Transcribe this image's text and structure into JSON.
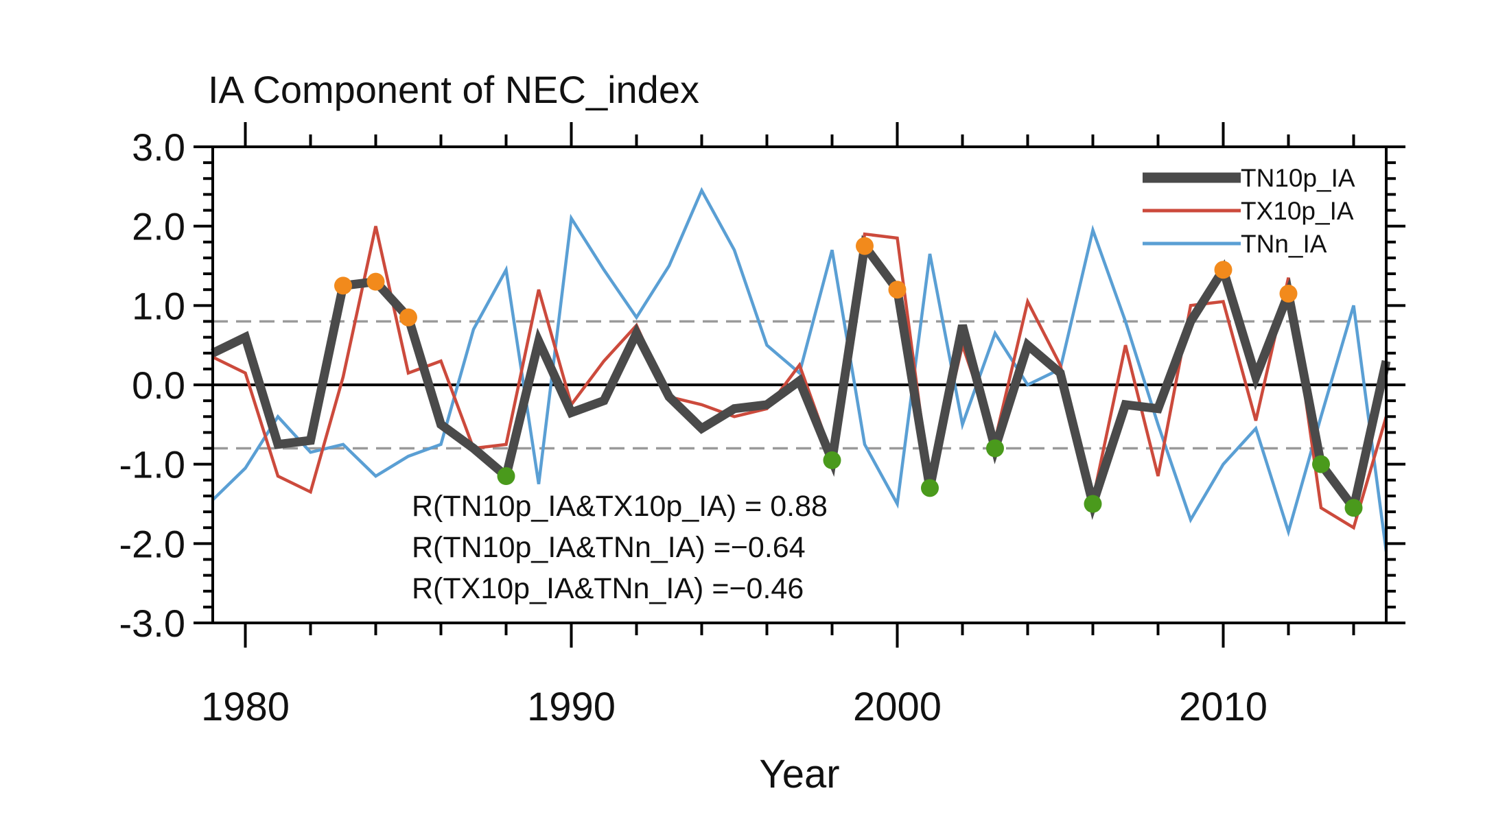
{
  "chart_data": {
    "type": "line",
    "title": "IA Component of NEC_index",
    "xlabel": "Year",
    "ylabel": "",
    "xlim": [
      1979,
      2015
    ],
    "ylim": [
      -3.0,
      3.0
    ],
    "x_ticks": [
      1980,
      1990,
      2000,
      2010
    ],
    "x_tick_labels": [
      "1980",
      "1990",
      "2000",
      "2010"
    ],
    "y_ticks": [
      -3.0,
      -2.0,
      -1.0,
      0.0,
      1.0,
      2.0,
      3.0
    ],
    "y_tick_labels": [
      "-3.0",
      "-2.0",
      "-1.0",
      "0.0",
      "1.0",
      "2.0",
      "3.0"
    ],
    "legend_position": "top-right",
    "reference_lines": {
      "zero": 0.0,
      "upper_threshold": 0.8,
      "lower_threshold": -0.8
    },
    "x": [
      1979,
      1980,
      1981,
      1982,
      1983,
      1984,
      1985,
      1986,
      1987,
      1988,
      1989,
      1990,
      1991,
      1992,
      1993,
      1994,
      1995,
      1996,
      1997,
      1998,
      1999,
      2000,
      2001,
      2002,
      2003,
      2004,
      2005,
      2006,
      2007,
      2008,
      2009,
      2010,
      2011,
      2012,
      2013,
      2014,
      2015
    ],
    "series": [
      {
        "name": "TN10p_IA",
        "color": "#4a4a4a",
        "values": [
          0.4,
          0.6,
          -0.75,
          -0.7,
          1.25,
          1.3,
          0.85,
          -0.5,
          -0.8,
          -1.15,
          0.55,
          -0.35,
          -0.2,
          0.65,
          -0.15,
          -0.55,
          -0.3,
          -0.25,
          0.05,
          -0.95,
          1.75,
          1.2,
          -1.3,
          0.75,
          -0.8,
          0.5,
          0.15,
          -1.5,
          -0.25,
          -0.3,
          0.8,
          1.45,
          0.1,
          1.15,
          -1.0,
          -1.55,
          0.3
        ]
      },
      {
        "name": "TX10p_IA",
        "color": "#cc4a3c",
        "values": [
          0.35,
          0.15,
          -1.15,
          -1.35,
          0.1,
          2.0,
          0.15,
          0.3,
          -0.8,
          -0.75,
          1.2,
          -0.25,
          0.3,
          0.75,
          -0.15,
          -0.25,
          -0.4,
          -0.3,
          0.25,
          -0.9,
          1.9,
          1.85,
          -1.25,
          0.5,
          -0.7,
          1.05,
          0.25,
          -1.45,
          0.5,
          -1.15,
          1.0,
          1.05,
          -0.45,
          1.35,
          -1.55,
          -1.8,
          -0.4
        ]
      },
      {
        "name": "TNn_IA",
        "color": "#5a9fd4",
        "values": [
          -1.45,
          -1.05,
          -0.4,
          -0.85,
          -0.75,
          -1.15,
          -0.9,
          -0.75,
          0.7,
          1.45,
          -1.25,
          2.1,
          1.45,
          0.85,
          1.5,
          2.45,
          1.7,
          0.5,
          0.15,
          1.7,
          -0.75,
          -1.5,
          1.65,
          -0.5,
          0.65,
          0.0,
          0.2,
          1.95,
          0.8,
          -0.5,
          -1.7,
          -1.0,
          -0.55,
          -1.85,
          -0.4,
          1.0,
          -2.1
        ]
      }
    ],
    "highlight_points": {
      "orange_color": "#f28a1c",
      "green_color": "#4a9a1c",
      "orange": [
        [
          1983,
          1.25
        ],
        [
          1984,
          1.3
        ],
        [
          1985,
          0.85
        ],
        [
          1999,
          1.75
        ],
        [
          2000,
          1.2
        ],
        [
          2010,
          1.45
        ],
        [
          2012,
          1.15
        ]
      ],
      "green": [
        [
          1988,
          -1.15
        ],
        [
          1998,
          -0.95
        ],
        [
          2001,
          -1.3
        ],
        [
          2003,
          -0.8
        ],
        [
          2006,
          -1.5
        ],
        [
          2013,
          -1.0
        ],
        [
          2014,
          -1.55
        ]
      ]
    },
    "annotations": [
      "R(TN10p_IA&TX10p_IA) = 0.88",
      "R(TN10p_IA&TNn_IA) =−0.64",
      "R(TX10p_IA&TNn_IA) =−0.46"
    ]
  }
}
